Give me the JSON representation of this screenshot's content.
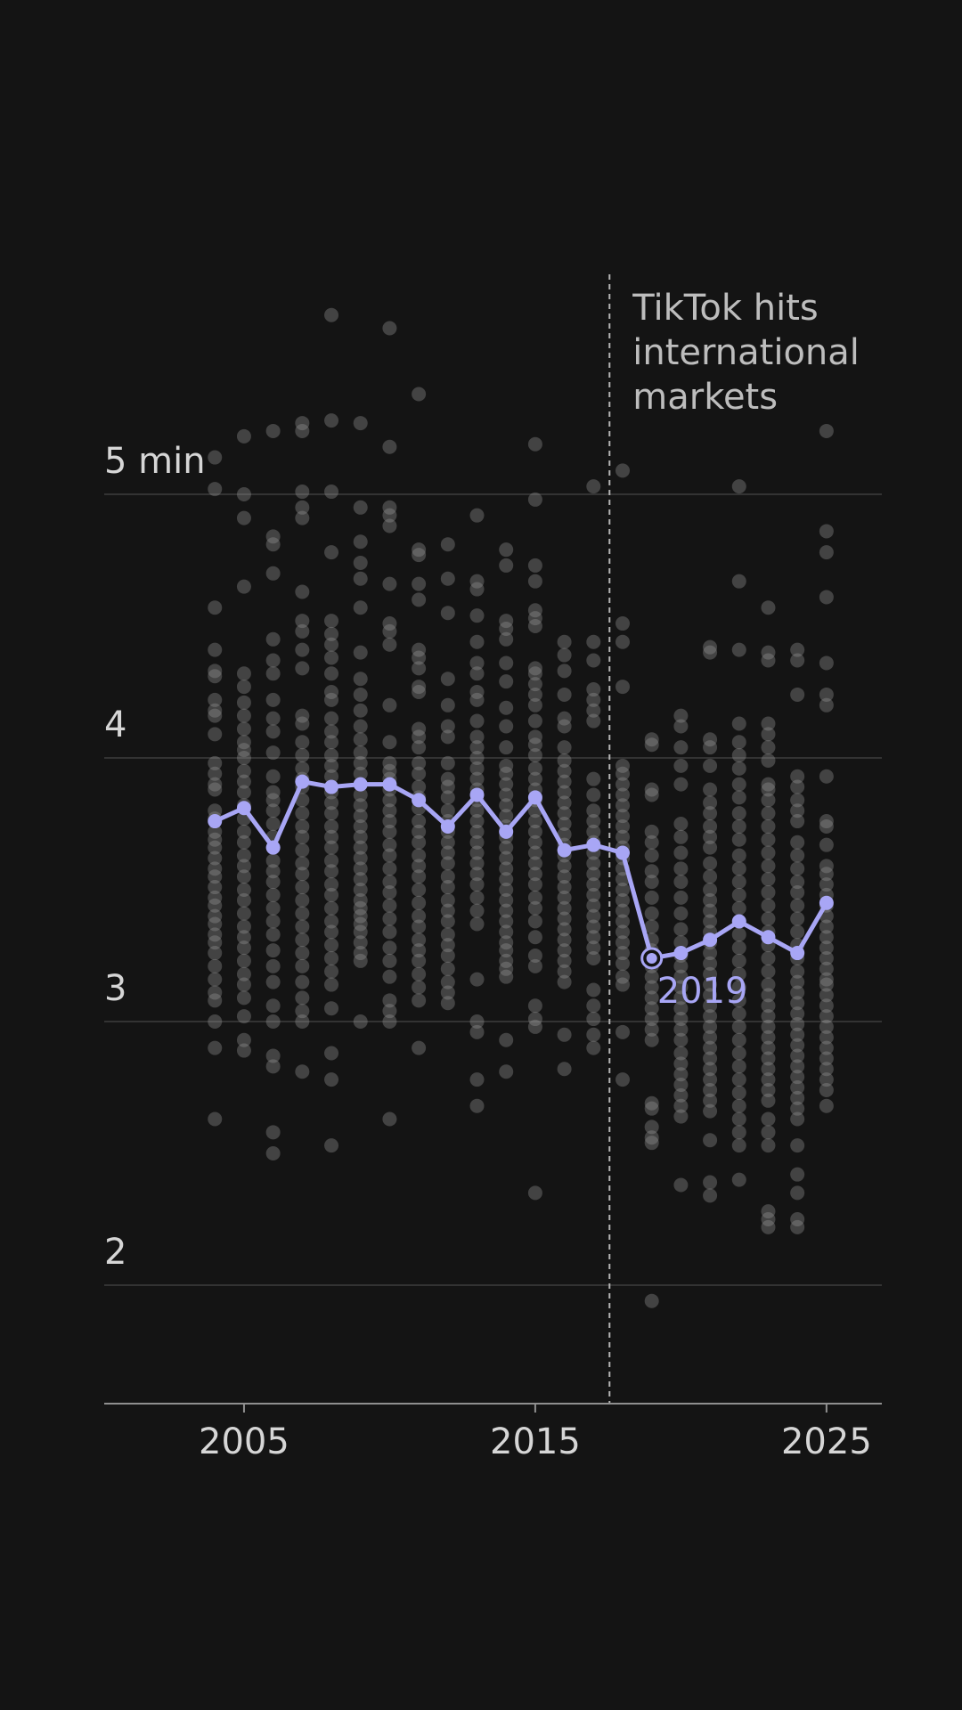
{
  "chart_data": {
    "type": "scatter",
    "y_unit_label": "5 min",
    "y_ticks": [
      2,
      3,
      4,
      5
    ],
    "y_tick_labels": [
      "2",
      "3",
      "4",
      "5 min"
    ],
    "x_ticks": [
      2005,
      2015,
      2025
    ],
    "x_tick_labels": [
      "2005",
      "2015",
      "2025"
    ],
    "xlim": [
      2000.2,
      2026.9
    ],
    "ylim": [
      1.55,
      6.0
    ],
    "grid": true,
    "annotation": {
      "x": 2017.55,
      "lines": [
        "TikTok hits",
        "international",
        "markets"
      ]
    },
    "highlight": {
      "x": 2019,
      "y": 3.24,
      "label": "2019"
    },
    "average_series": {
      "x": [
        2004,
        2005,
        2006,
        2007,
        2008,
        2009,
        2010,
        2011,
        2012,
        2013,
        2014,
        2015,
        2016,
        2017,
        2018,
        2019,
        2020,
        2021,
        2022,
        2023,
        2024,
        2025
      ],
      "y": [
        3.76,
        3.81,
        3.66,
        3.91,
        3.89,
        3.9,
        3.9,
        3.84,
        3.74,
        3.86,
        3.72,
        3.85,
        3.65,
        3.67,
        3.64,
        3.24,
        3.26,
        3.31,
        3.38,
        3.32,
        3.26,
        3.45
      ]
    },
    "songs": [
      {
        "x": 2004,
        "y": [
          5.14,
          5.02,
          4.57,
          4.41,
          4.33,
          4.31,
          4.22,
          4.18,
          4.16,
          4.09,
          3.98,
          3.94,
          3.9,
          3.88,
          3.8,
          3.77,
          3.72,
          3.69,
          3.66,
          3.62,
          3.58,
          3.55,
          3.51,
          3.47,
          3.44,
          3.4,
          3.37,
          3.33,
          3.3,
          3.26,
          3.21,
          3.16,
          3.11,
          3.08,
          3.0,
          2.9,
          2.63
        ]
      },
      {
        "x": 2005,
        "y": [
          5.22,
          5.0,
          4.91,
          4.65,
          4.32,
          4.27,
          4.21,
          4.16,
          4.11,
          4.06,
          4.03,
          4.0,
          3.95,
          3.91,
          3.87,
          3.82,
          3.77,
          3.72,
          3.68,
          3.63,
          3.59,
          3.55,
          3.5,
          3.46,
          3.41,
          3.36,
          3.32,
          3.28,
          3.23,
          3.18,
          3.14,
          3.09,
          3.02,
          2.93,
          2.89
        ]
      },
      {
        "x": 2006,
        "y": [
          5.24,
          4.84,
          4.81,
          4.7,
          4.45,
          4.37,
          4.32,
          4.22,
          4.15,
          4.1,
          4.02,
          3.93,
          3.87,
          3.84,
          3.8,
          3.75,
          3.7,
          3.66,
          3.61,
          3.57,
          3.53,
          3.48,
          3.43,
          3.38,
          3.33,
          3.27,
          3.21,
          3.15,
          3.06,
          3.0,
          2.87,
          2.83,
          2.58,
          2.5
        ]
      },
      {
        "x": 2007,
        "y": [
          5.27,
          5.24,
          5.01,
          4.95,
          4.91,
          4.63,
          4.52,
          4.48,
          4.41,
          4.34,
          4.16,
          4.13,
          4.06,
          4.01,
          3.96,
          3.92,
          3.89,
          3.84,
          3.79,
          3.74,
          3.7,
          3.65,
          3.6,
          3.56,
          3.51,
          3.46,
          3.41,
          3.36,
          3.31,
          3.26,
          3.21,
          3.15,
          3.09,
          3.04,
          3.0,
          2.81
        ]
      },
      {
        "x": 2008,
        "y": [
          5.68,
          5.28,
          5.01,
          4.78,
          4.52,
          4.47,
          4.43,
          4.38,
          4.32,
          4.25,
          4.22,
          4.15,
          4.1,
          4.06,
          4.01,
          3.97,
          3.93,
          3.87,
          3.83,
          3.79,
          3.74,
          3.7,
          3.66,
          3.61,
          3.57,
          3.52,
          3.48,
          3.43,
          3.38,
          3.34,
          3.29,
          3.24,
          3.19,
          3.14,
          3.05,
          2.88,
          2.78,
          2.53
        ]
      },
      {
        "x": 2009,
        "y": [
          5.27,
          4.95,
          4.82,
          4.74,
          4.68,
          4.57,
          4.4,
          4.3,
          4.24,
          4.18,
          4.12,
          4.07,
          4.02,
          3.98,
          3.94,
          3.9,
          3.86,
          3.82,
          3.78,
          3.74,
          3.7,
          3.66,
          3.62,
          3.58,
          3.54,
          3.5,
          3.46,
          3.43,
          3.4,
          3.37,
          3.34,
          3.3,
          3.26,
          3.23,
          3.0
        ]
      },
      {
        "x": 2010,
        "y": [
          5.63,
          5.18,
          4.95,
          4.92,
          4.88,
          4.66,
          4.51,
          4.48,
          4.43,
          4.2,
          4.06,
          3.98,
          3.95,
          3.92,
          3.88,
          3.84,
          3.8,
          3.76,
          3.72,
          3.67,
          3.63,
          3.58,
          3.53,
          3.49,
          3.44,
          3.39,
          3.34,
          3.28,
          3.23,
          3.17,
          3.08,
          3.04,
          3.0,
          2.63
        ]
      },
      {
        "x": 2011,
        "y": [
          5.38,
          4.79,
          4.77,
          4.66,
          4.6,
          4.41,
          4.38,
          4.34,
          4.27,
          4.25,
          4.11,
          4.08,
          4.04,
          3.98,
          3.94,
          3.89,
          3.85,
          3.81,
          3.76,
          3.72,
          3.68,
          3.63,
          3.59,
          3.55,
          3.5,
          3.45,
          3.4,
          3.36,
          3.31,
          3.27,
          3.23,
          3.18,
          3.13,
          3.08,
          2.9
        ]
      },
      {
        "x": 2012,
        "y": [
          4.81,
          4.68,
          4.55,
          4.3,
          4.2,
          4.12,
          4.08,
          3.98,
          3.92,
          3.89,
          3.85,
          3.8,
          3.76,
          3.72,
          3.68,
          3.64,
          3.6,
          3.55,
          3.51,
          3.46,
          3.42,
          3.38,
          3.33,
          3.29,
          3.25,
          3.2,
          3.15,
          3.11,
          3.07
        ]
      },
      {
        "x": 2013,
        "y": [
          4.92,
          4.67,
          4.64,
          4.54,
          4.44,
          4.36,
          4.32,
          4.25,
          4.22,
          4.14,
          4.08,
          4.04,
          4.0,
          3.96,
          3.92,
          3.88,
          3.84,
          3.8,
          3.76,
          3.72,
          3.68,
          3.64,
          3.6,
          3.56,
          3.52,
          3.47,
          3.42,
          3.37,
          3.16,
          3.0,
          2.96,
          2.78,
          2.68
        ]
      },
      {
        "x": 2014,
        "y": [
          4.79,
          4.73,
          4.52,
          4.49,
          4.45,
          4.36,
          4.29,
          4.19,
          4.12,
          4.04,
          3.97,
          3.94,
          3.9,
          3.86,
          3.82,
          3.78,
          3.74,
          3.7,
          3.66,
          3.62,
          3.58,
          3.54,
          3.5,
          3.46,
          3.42,
          3.38,
          3.34,
          3.3,
          3.27,
          3.23,
          3.2,
          3.17,
          2.93,
          2.81
        ]
      },
      {
        "x": 2015,
        "y": [
          5.19,
          4.98,
          4.73,
          4.67,
          4.56,
          4.53,
          4.5,
          4.34,
          4.32,
          4.28,
          4.24,
          4.2,
          4.14,
          4.08,
          4.05,
          4.01,
          3.96,
          3.92,
          3.88,
          3.84,
          3.8,
          3.76,
          3.72,
          3.68,
          3.64,
          3.6,
          3.56,
          3.52,
          3.47,
          3.43,
          3.38,
          3.32,
          3.25,
          3.21,
          3.06,
          3.01,
          2.98,
          2.35
        ]
      },
      {
        "x": 2016,
        "y": [
          4.44,
          4.39,
          4.33,
          4.24,
          4.15,
          4.12,
          4.04,
          3.99,
          3.95,
          3.91,
          3.87,
          3.83,
          3.79,
          3.75,
          3.71,
          3.67,
          3.63,
          3.59,
          3.55,
          3.51,
          3.47,
          3.43,
          3.39,
          3.35,
          3.31,
          3.27,
          3.23,
          3.19,
          3.15,
          2.95,
          2.82
        ]
      },
      {
        "x": 2017,
        "y": [
          5.03,
          4.44,
          4.37,
          4.26,
          4.22,
          4.18,
          4.14,
          3.92,
          3.86,
          3.8,
          3.76,
          3.72,
          3.68,
          3.64,
          3.6,
          3.56,
          3.52,
          3.48,
          3.44,
          3.4,
          3.36,
          3.32,
          3.28,
          3.24,
          3.12,
          3.06,
          3.01,
          2.95,
          2.9
        ]
      },
      {
        "x": 2018,
        "y": [
          5.09,
          4.51,
          4.44,
          4.27,
          3.97,
          3.94,
          3.9,
          3.86,
          3.82,
          3.78,
          3.74,
          3.7,
          3.66,
          3.62,
          3.58,
          3.54,
          3.5,
          3.46,
          3.42,
          3.38,
          3.34,
          3.3,
          3.26,
          3.22,
          3.17,
          3.14,
          2.96,
          2.78
        ]
      },
      {
        "x": 2019,
        "y": [
          4.07,
          4.05,
          3.88,
          3.86,
          3.72,
          3.68,
          3.63,
          3.57,
          3.53,
          3.47,
          3.41,
          3.36,
          3.31,
          3.27,
          3.24,
          3.21,
          3.17,
          3.13,
          3.09,
          3.05,
          3.01,
          2.97,
          2.93,
          2.69,
          2.67,
          2.6,
          2.56,
          2.54,
          1.94
        ]
      },
      {
        "x": 2020,
        "y": [
          4.16,
          4.12,
          4.04,
          3.97,
          3.9,
          3.75,
          3.7,
          3.64,
          3.58,
          3.53,
          3.47,
          3.41,
          3.35,
          3.3,
          3.25,
          3.21,
          3.17,
          3.13,
          3.09,
          3.05,
          3.01,
          2.97,
          2.93,
          2.88,
          2.84,
          2.8,
          2.76,
          2.72,
          2.68,
          2.64,
          2.38
        ]
      },
      {
        "x": 2021,
        "y": [
          4.42,
          4.4,
          4.07,
          4.04,
          3.97,
          3.88,
          3.83,
          3.79,
          3.74,
          3.7,
          3.66,
          3.6,
          3.55,
          3.5,
          3.46,
          3.42,
          3.38,
          3.34,
          3.3,
          3.26,
          3.22,
          3.18,
          3.14,
          3.1,
          3.06,
          3.02,
          2.98,
          2.94,
          2.9,
          2.86,
          2.82,
          2.78,
          2.74,
          2.7,
          2.66,
          2.55,
          2.39,
          2.34
        ]
      },
      {
        "x": 2022,
        "y": [
          5.03,
          4.67,
          4.41,
          4.13,
          4.06,
          4.01,
          3.96,
          3.9,
          3.85,
          3.79,
          3.74,
          3.69,
          3.63,
          3.58,
          3.53,
          3.48,
          3.43,
          3.38,
          3.33,
          3.28,
          3.23,
          3.18,
          3.13,
          3.08,
          3.03,
          2.98,
          2.93,
          2.88,
          2.83,
          2.78,
          2.73,
          2.68,
          2.63,
          2.58,
          2.53,
          2.4
        ]
      },
      {
        "x": 2023,
        "y": [
          4.57,
          4.4,
          4.37,
          4.13,
          4.09,
          4.04,
          3.99,
          3.9,
          3.88,
          3.84,
          3.79,
          3.74,
          3.69,
          3.64,
          3.59,
          3.54,
          3.49,
          3.44,
          3.39,
          3.34,
          3.29,
          3.24,
          3.19,
          3.14,
          3.1,
          3.06,
          3.02,
          2.98,
          2.94,
          2.9,
          2.86,
          2.82,
          2.78,
          2.74,
          2.7,
          2.63,
          2.58,
          2.53,
          2.28,
          2.25,
          2.22
        ]
      },
      {
        "x": 2024,
        "y": [
          4.41,
          4.37,
          4.24,
          3.93,
          3.89,
          3.84,
          3.8,
          3.76,
          3.68,
          3.63,
          3.58,
          3.53,
          3.49,
          3.44,
          3.39,
          3.34,
          3.29,
          3.24,
          3.19,
          3.15,
          3.11,
          3.07,
          3.03,
          2.99,
          2.95,
          2.91,
          2.87,
          2.83,
          2.79,
          2.75,
          2.71,
          2.67,
          2.63,
          2.53,
          2.42,
          2.35,
          2.25,
          2.22
        ]
      },
      {
        "x": 2025,
        "y": [
          5.24,
          4.86,
          4.78,
          4.61,
          4.36,
          4.24,
          4.2,
          3.93,
          3.76,
          3.74,
          3.67,
          3.59,
          3.56,
          3.52,
          3.48,
          3.44,
          3.4,
          3.36,
          3.32,
          3.28,
          3.24,
          3.2,
          3.16,
          3.14,
          3.1,
          3.06,
          3.02,
          2.98,
          2.94,
          2.9,
          2.86,
          2.82,
          2.78,
          2.74,
          2.68
        ]
      }
    ],
    "colors": {
      "background": "#141414",
      "gridline": "#333333",
      "axis": "#8f8f8f",
      "song_dot": "#9a9a9a",
      "average": "#a8a6f5",
      "annotation_line": "#b5b5b5",
      "tick_text": "#d6d6d6",
      "annotation_text": "#bdbdbd"
    }
  }
}
